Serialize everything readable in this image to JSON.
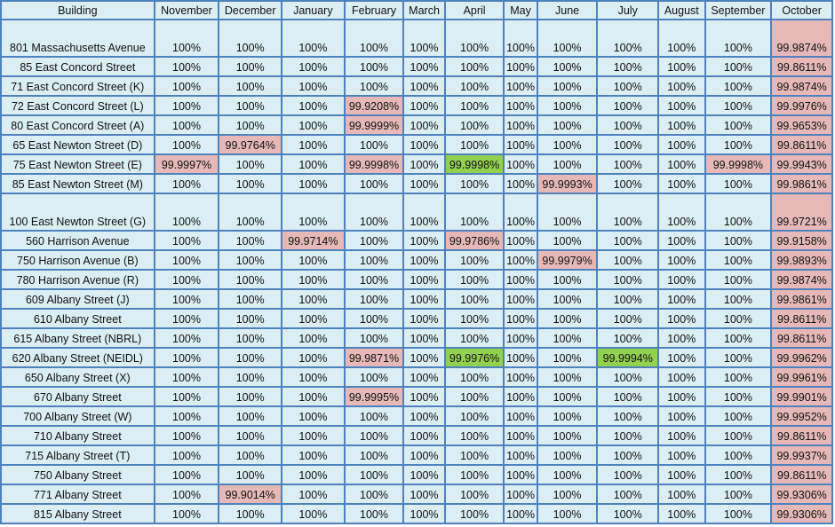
{
  "table": {
    "headers": [
      "Building",
      "November",
      "December",
      "January",
      "February",
      "March",
      "April",
      "May",
      "June",
      "July",
      "August",
      "September",
      "October"
    ],
    "rows": [
      {
        "building": "801 Massachusetts Avenue",
        "cells": [
          "100%",
          "100%",
          "100%",
          "100%",
          "100%",
          "100%",
          "100%",
          "100%",
          "100%",
          "100%",
          "100%",
          "99.9874%"
        ]
      },
      {
        "building": "85 East Concord Street",
        "cells": [
          "100%",
          "100%",
          "100%",
          "100%",
          "100%",
          "100%",
          "100%",
          "100%",
          "100%",
          "100%",
          "100%",
          "99.8611%"
        ]
      },
      {
        "building": "71 East Concord Street (K)",
        "cells": [
          "100%",
          "100%",
          "100%",
          "100%",
          "100%",
          "100%",
          "100%",
          "100%",
          "100%",
          "100%",
          "100%",
          "99.9874%"
        ]
      },
      {
        "building": "72 East Concord Street (L)",
        "cells": [
          "100%",
          "100%",
          "100%",
          "99.9208%",
          "100%",
          "100%",
          "100%",
          "100%",
          "100%",
          "100%",
          "100%",
          "99.9976%"
        ]
      },
      {
        "building": "80 East Concord Street (A)",
        "cells": [
          "100%",
          "100%",
          "100%",
          "99.9999%",
          "100%",
          "100%",
          "100%",
          "100%",
          "100%",
          "100%",
          "100%",
          "99.9653%"
        ]
      },
      {
        "building": "65 East Newton Street (D)",
        "cells": [
          "100%",
          "99.9764%",
          "100%",
          "100%",
          "100%",
          "100%",
          "100%",
          "100%",
          "100%",
          "100%",
          "100%",
          "99.8611%"
        ]
      },
      {
        "building": "75 East Newton Street (E)",
        "cells": [
          "99.9997%",
          "100%",
          "100%",
          "99.9998%",
          "100%",
          "99.9998%",
          "100%",
          "100%",
          "100%",
          "100%",
          "99.9998%",
          "99.9943%"
        ]
      },
      {
        "building": "85 East Newton Street (M)",
        "cells": [
          "100%",
          "100%",
          "100%",
          "100%",
          "100%",
          "100%",
          "100%",
          "99.9993%",
          "100%",
          "100%",
          "100%",
          "99.9861%"
        ]
      },
      {
        "building": "100 East Newton Street (G)",
        "cells": [
          "100%",
          "100%",
          "100%",
          "100%",
          "100%",
          "100%",
          "100%",
          "100%",
          "100%",
          "100%",
          "100%",
          "99.9721%"
        ]
      },
      {
        "building": "560 Harrison Avenue",
        "cells": [
          "100%",
          "100%",
          "99.9714%",
          "100%",
          "100%",
          "99.9786%",
          "100%",
          "100%",
          "100%",
          "100%",
          "100%",
          "99.9158%"
        ]
      },
      {
        "building": "750 Harrison Avenue (B)",
        "cells": [
          "100%",
          "100%",
          "100%",
          "100%",
          "100%",
          "100%",
          "100%",
          "99.9979%",
          "100%",
          "100%",
          "100%",
          "99.9893%"
        ]
      },
      {
        "building": "780 Harrison Avenue (R)",
        "cells": [
          "100%",
          "100%",
          "100%",
          "100%",
          "100%",
          "100%",
          "100%",
          "100%",
          "100%",
          "100%",
          "100%",
          "99.9874%"
        ]
      },
      {
        "building": "609 Albany Street (J)",
        "cells": [
          "100%",
          "100%",
          "100%",
          "100%",
          "100%",
          "100%",
          "100%",
          "100%",
          "100%",
          "100%",
          "100%",
          "99.9861%"
        ]
      },
      {
        "building": "610 Albany Street",
        "cells": [
          "100%",
          "100%",
          "100%",
          "100%",
          "100%",
          "100%",
          "100%",
          "100%",
          "100%",
          "100%",
          "100%",
          "99.8611%"
        ]
      },
      {
        "building": "615 Albany Street (NBRL)",
        "cells": [
          "100%",
          "100%",
          "100%",
          "100%",
          "100%",
          "100%",
          "100%",
          "100%",
          "100%",
          "100%",
          "100%",
          "99.8611%"
        ]
      },
      {
        "building": "620 Albany Street (NEIDL)",
        "cells": [
          "100%",
          "100%",
          "100%",
          "99.9871%",
          "100%",
          "99.9976%",
          "100%",
          "100%",
          "99.9994%",
          "100%",
          "100%",
          "99.9962%"
        ]
      },
      {
        "building": "650 Albany Street (X)",
        "cells": [
          "100%",
          "100%",
          "100%",
          "100%",
          "100%",
          "100%",
          "100%",
          "100%",
          "100%",
          "100%",
          "100%",
          "99.9961%"
        ]
      },
      {
        "building": "670 Albany Street",
        "cells": [
          "100%",
          "100%",
          "100%",
          "99.9995%",
          "100%",
          "100%",
          "100%",
          "100%",
          "100%",
          "100%",
          "100%",
          "99.9901%"
        ]
      },
      {
        "building": "700 Albany Street (W)",
        "cells": [
          "100%",
          "100%",
          "100%",
          "100%",
          "100%",
          "100%",
          "100%",
          "100%",
          "100%",
          "100%",
          "100%",
          "99.9952%"
        ]
      },
      {
        "building": "710 Albany Street",
        "cells": [
          "100%",
          "100%",
          "100%",
          "100%",
          "100%",
          "100%",
          "100%",
          "100%",
          "100%",
          "100%",
          "100%",
          "99.8611%"
        ]
      },
      {
        "building": "715 Albany Street (T)",
        "cells": [
          "100%",
          "100%",
          "100%",
          "100%",
          "100%",
          "100%",
          "100%",
          "100%",
          "100%",
          "100%",
          "100%",
          "99.9937%"
        ]
      },
      {
        "building": "750 Albany Street",
        "cells": [
          "100%",
          "100%",
          "100%",
          "100%",
          "100%",
          "100%",
          "100%",
          "100%",
          "100%",
          "100%",
          "100%",
          "99.8611%"
        ]
      },
      {
        "building": "771 Albany Street",
        "cells": [
          "100%",
          "99.9014%",
          "100%",
          "100%",
          "100%",
          "100%",
          "100%",
          "100%",
          "100%",
          "100%",
          "100%",
          "99.9306%"
        ]
      },
      {
        "building": "815 Albany Street",
        "cells": [
          "100%",
          "100%",
          "100%",
          "100%",
          "100%",
          "100%",
          "100%",
          "100%",
          "100%",
          "100%",
          "100%",
          "99.9306%"
        ]
      }
    ],
    "highlights": {
      "pink": "#e6b9b8",
      "green": "#92d050",
      "green_cells": [
        [
          6,
          5
        ],
        [
          15,
          5
        ],
        [
          15,
          8
        ]
      ]
    }
  }
}
